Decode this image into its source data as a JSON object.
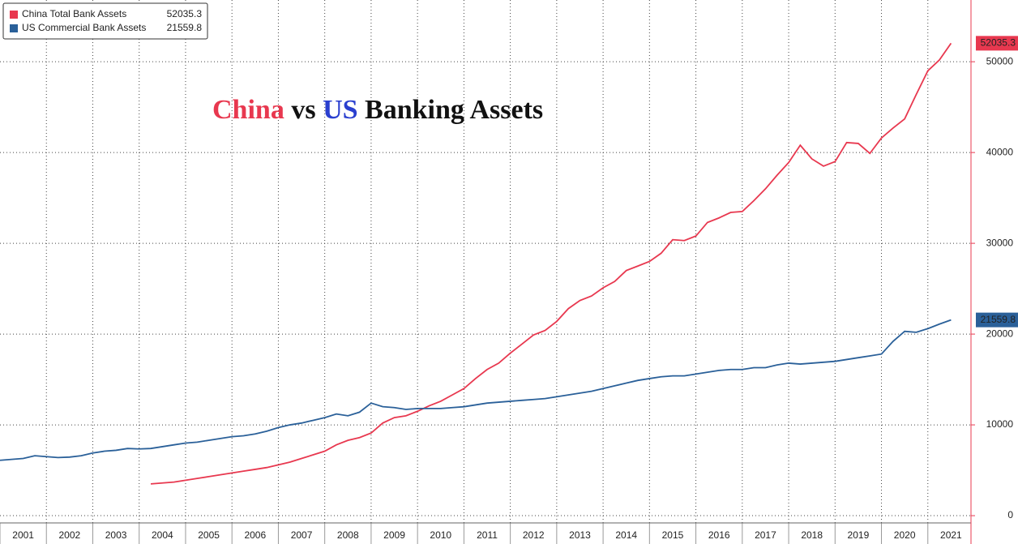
{
  "chart_data": {
    "type": "line",
    "title": [
      "China",
      "vs",
      "US",
      "Banking Assets"
    ],
    "xlim": [
      2001,
      2021.93
    ],
    "xticks": [
      2001,
      2002,
      2003,
      2004,
      2005,
      2006,
      2007,
      2008,
      2009,
      2010,
      2011,
      2012,
      2013,
      2014,
      2015,
      2016,
      2017,
      2018,
      2019,
      2020,
      2021
    ],
    "ylim": [
      -800,
      56800
    ],
    "yticks": [
      0,
      10000,
      20000,
      30000,
      40000,
      50000
    ],
    "grid": true,
    "legend": "top-left",
    "series": [
      {
        "name": "China Total Bank Assets",
        "color": "#e8384f",
        "x": [
          2004.25,
          2004.5,
          2004.75,
          2005,
          2005.25,
          2005.5,
          2005.75,
          2006,
          2006.25,
          2006.5,
          2006.75,
          2007,
          2007.25,
          2007.5,
          2007.75,
          2008,
          2008.25,
          2008.5,
          2008.75,
          2009,
          2009.25,
          2009.5,
          2009.75,
          2010,
          2010.25,
          2010.5,
          2010.75,
          2011,
          2011.25,
          2011.5,
          2011.75,
          2012,
          2012.25,
          2012.5,
          2012.75,
          2013,
          2013.25,
          2013.5,
          2013.75,
          2014,
          2014.25,
          2014.5,
          2014.75,
          2015,
          2015.25,
          2015.5,
          2015.75,
          2016,
          2016.25,
          2016.5,
          2016.75,
          2017,
          2017.25,
          2017.5,
          2017.75,
          2018,
          2018.25,
          2018.5,
          2018.75,
          2019,
          2019.25,
          2019.5,
          2019.75,
          2020,
          2020.25,
          2020.5,
          2020.75,
          2021,
          2021.25,
          2021.5
        ],
        "values": [
          3500,
          3600,
          3700,
          3900,
          4100,
          4300,
          4500,
          4700,
          4900,
          5100,
          5300,
          5600,
          5900,
          6300,
          6700,
          7100,
          7800,
          8300,
          8600,
          9100,
          10200,
          10800,
          11000,
          11500,
          12100,
          12600,
          13300,
          14000,
          15100,
          16100,
          16800,
          17900,
          18900,
          19900,
          20400,
          21400,
          22800,
          23700,
          24200,
          25100,
          25800,
          27000,
          27500,
          28000,
          28900,
          30400,
          30300,
          30800,
          32300,
          32800,
          33400,
          33500,
          34700,
          36000,
          37500,
          38900,
          40800,
          39300,
          38500,
          39000,
          41100,
          41000,
          39900,
          41600,
          42700,
          43700,
          46400,
          49000,
          50200,
          52035.3
        ]
      },
      {
        "name": "US Commercial Bank Assets",
        "color": "#2a6099",
        "x": [
          2001,
          2001.25,
          2001.5,
          2001.75,
          2002,
          2002.25,
          2002.5,
          2002.75,
          2003,
          2003.25,
          2003.5,
          2003.75,
          2004,
          2004.25,
          2004.5,
          2004.75,
          2005,
          2005.25,
          2005.5,
          2005.75,
          2006,
          2006.25,
          2006.5,
          2006.75,
          2007,
          2007.25,
          2007.5,
          2007.75,
          2008,
          2008.25,
          2008.5,
          2008.75,
          2009,
          2009.25,
          2009.5,
          2009.75,
          2010,
          2010.25,
          2010.5,
          2010.75,
          2011,
          2011.25,
          2011.5,
          2011.75,
          2012,
          2012.25,
          2012.5,
          2012.75,
          2013,
          2013.25,
          2013.5,
          2013.75,
          2014,
          2014.25,
          2014.5,
          2014.75,
          2015,
          2015.25,
          2015.5,
          2015.75,
          2016,
          2016.25,
          2016.5,
          2016.75,
          2017,
          2017.25,
          2017.5,
          2017.75,
          2018,
          2018.25,
          2018.5,
          2018.75,
          2019,
          2019.25,
          2019.5,
          2019.75,
          2020,
          2020.25,
          2020.5,
          2020.75,
          2021,
          2021.25,
          2021.5
        ],
        "values": [
          6100,
          6200,
          6300,
          6600,
          6500,
          6400,
          6450,
          6600,
          6900,
          7100,
          7200,
          7400,
          7350,
          7400,
          7600,
          7800,
          8000,
          8100,
          8300,
          8500,
          8700,
          8800,
          9000,
          9300,
          9700,
          10000,
          10200,
          10500,
          10800,
          11200,
          11000,
          11400,
          12400,
          12000,
          11900,
          11700,
          11800,
          11800,
          11800,
          11900,
          12000,
          12200,
          12400,
          12500,
          12600,
          12700,
          12800,
          12900,
          13100,
          13300,
          13500,
          13700,
          14000,
          14300,
          14600,
          14900,
          15100,
          15300,
          15400,
          15400,
          15600,
          15800,
          16000,
          16100,
          16100,
          16300,
          16300,
          16600,
          16800,
          16700,
          16800,
          16900,
          17000,
          17200,
          17400,
          17600,
          17800,
          19200,
          20300,
          20200,
          20600,
          21100,
          21559.8
        ]
      }
    ]
  }
}
